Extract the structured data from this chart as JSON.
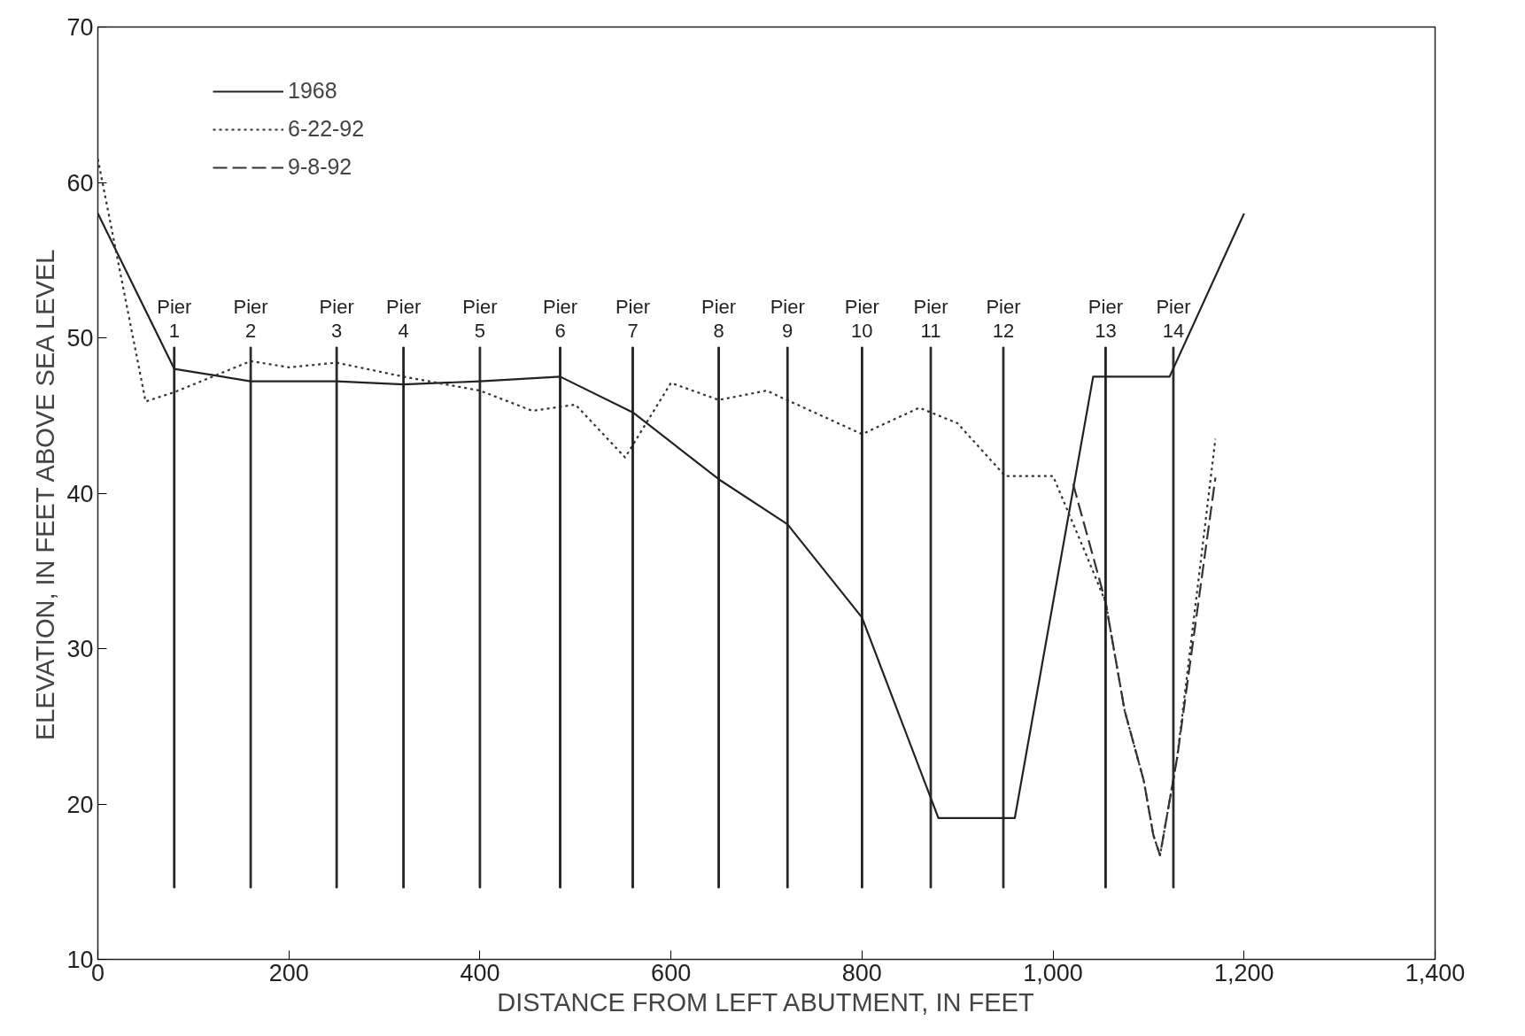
{
  "chart_data": {
    "type": "line",
    "xlabel": "DISTANCE FROM LEFT ABUTMENT, IN FEET",
    "ylabel": "ELEVATION, IN FEET ABOVE SEA LEVEL",
    "xlim": [
      0,
      1400
    ],
    "ylim": [
      10,
      70
    ],
    "xticks": [
      0,
      200,
      400,
      {
        "value": 600,
        "label": "600"
      },
      800,
      {
        "value": 1000,
        "label": "1,000"
      },
      {
        "value": 1200,
        "label": "1,200"
      },
      {
        "value": 1400,
        "label": "1,400"
      }
    ],
    "yticks": [
      10,
      20,
      30,
      40,
      50,
      60,
      70
    ],
    "grid": false,
    "legend": "top left",
    "marker": "none",
    "series": [
      {
        "name": "1968",
        "color": "#222222",
        "line_style": "solid",
        "x": [
          0,
          80,
          160,
          250,
          320,
          400,
          484,
          560,
          650,
          722,
          800,
          880,
          960,
          1042,
          1122,
          1200
        ],
        "values": [
          58,
          48,
          47.2,
          47.2,
          47,
          47.2,
          47.5,
          45.2,
          40.9,
          38,
          32,
          19.1,
          19.1,
          47.5,
          47.5,
          58
        ]
      },
      {
        "name": "6-22-92",
        "color": "#333333",
        "line_style": "dotted",
        "x": [
          0,
          50,
          80,
          160,
          200,
          250,
          320,
          400,
          455,
          500,
          552,
          600,
          650,
          700,
          800,
          860,
          900,
          950,
          1000,
          1035,
          1055,
          1075,
          1095,
          1105,
          1112,
          1130,
          1170
        ],
        "values": [
          61.5,
          45.9,
          46.5,
          48.5,
          48.1,
          48.4,
          47.5,
          46.6,
          45.3,
          45.7,
          42.3,
          47.1,
          46,
          46.6,
          43.8,
          45.5,
          44.5,
          41.1,
          41.1,
          36,
          33,
          26,
          21.5,
          18,
          16.7,
          23,
          43.5
        ]
      },
      {
        "name": "9-8-92",
        "color": "#333333",
        "line_style": "dashed",
        "x": [
          1021,
          1055,
          1075,
          1095,
          1105,
          1112,
          1130,
          1170
        ],
        "values": [
          40.6,
          33,
          26,
          21.5,
          18,
          16.7,
          23,
          41
        ]
      },
      {
        "type": "bar",
        "color": "#222222",
        "x": [
          80,
          160,
          250,
          320,
          400,
          484,
          560,
          650,
          722,
          800,
          872,
          948,
          1055,
          1126
        ],
        "base": [
          14.6,
          14.6,
          14.6,
          14.6,
          14.6,
          14.6,
          14.6,
          14.6,
          14.6,
          14.6,
          14.6,
          14.6,
          14.6,
          14.6
        ],
        "values": [
          34.8,
          34.8,
          34.8,
          34.8,
          34.8,
          34.8,
          34.8,
          34.8,
          34.8,
          34.8,
          34.8,
          34.8,
          34.8,
          34.8
        ]
      }
    ],
    "annotations": [
      {
        "text": "Pier\n1",
        "x": 80,
        "y": 49.4
      },
      {
        "text": "Pier\n2",
        "x": 160,
        "y": 49.4
      },
      {
        "text": "Pier\n3",
        "x": 250,
        "y": 49.4
      },
      {
        "text": "Pier\n4",
        "x": 320,
        "y": 49.4
      },
      {
        "text": "Pier\n5",
        "x": 400,
        "y": 49.4
      },
      {
        "text": "Pier\n6",
        "x": 484,
        "y": 49.4
      },
      {
        "text": "Pier\n7",
        "x": 560,
        "y": 49.4
      },
      {
        "text": "Pier\n8",
        "x": 650,
        "y": 49.4
      },
      {
        "text": "Pier\n9",
        "x": 722,
        "y": 49.4
      },
      {
        "text": "Pier\n10",
        "x": 800,
        "y": 49.4
      },
      {
        "text": "Pier\n11",
        "x": 872,
        "y": 49.4
      },
      {
        "text": "Pier\n12",
        "x": 948,
        "y": 49.4
      },
      {
        "text": "Pier\n13",
        "x": 1055,
        "y": 49.4
      },
      {
        "text": "Pier\n14",
        "x": 1126,
        "y": 49.4
      }
    ]
  }
}
